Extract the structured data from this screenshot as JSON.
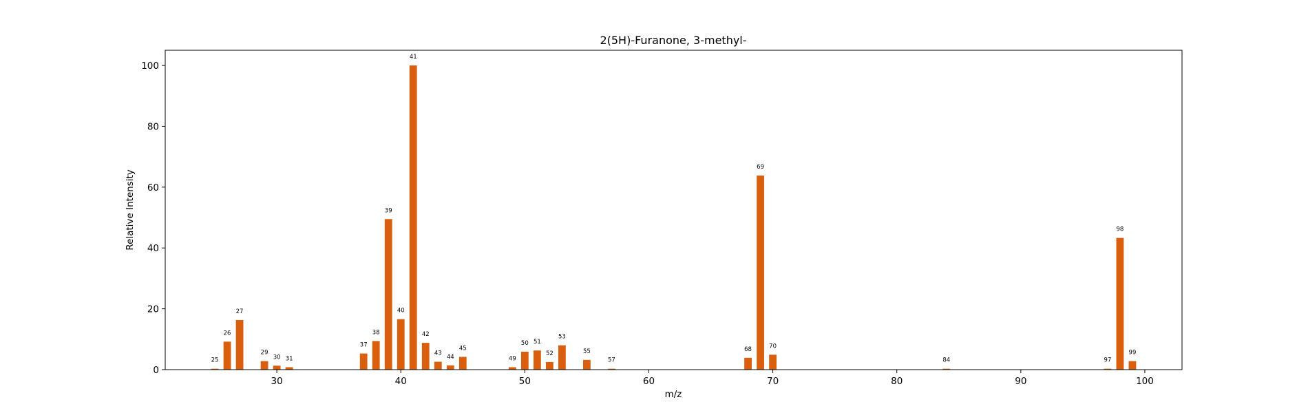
{
  "chart_data": {
    "type": "bar",
    "title": "2(5H)-Furanone, 3-methyl-",
    "xlabel": "m/z",
    "ylabel": "Relative Intensity",
    "xlim": [
      21,
      103
    ],
    "ylim": [
      0,
      105
    ],
    "xticks": [
      30,
      40,
      50,
      60,
      70,
      80,
      90,
      100
    ],
    "yticks": [
      0,
      20,
      40,
      60,
      80,
      100
    ],
    "bar_color": "#d95f0e",
    "grid": false,
    "legend": false,
    "peaks": [
      {
        "mz": 25,
        "intensity": 0.3
      },
      {
        "mz": 26,
        "intensity": 9.2
      },
      {
        "mz": 27,
        "intensity": 16.3
      },
      {
        "mz": 29,
        "intensity": 2.8
      },
      {
        "mz": 30,
        "intensity": 1.3
      },
      {
        "mz": 31,
        "intensity": 0.8
      },
      {
        "mz": 37,
        "intensity": 5.3
      },
      {
        "mz": 38,
        "intensity": 9.4
      },
      {
        "mz": 39,
        "intensity": 49.5
      },
      {
        "mz": 40,
        "intensity": 16.6
      },
      {
        "mz": 41,
        "intensity": 100
      },
      {
        "mz": 42,
        "intensity": 8.8
      },
      {
        "mz": 43,
        "intensity": 2.6
      },
      {
        "mz": 44,
        "intensity": 1.4
      },
      {
        "mz": 45,
        "intensity": 4.2
      },
      {
        "mz": 49,
        "intensity": 0.8
      },
      {
        "mz": 50,
        "intensity": 5.9
      },
      {
        "mz": 51,
        "intensity": 6.3
      },
      {
        "mz": 52,
        "intensity": 2.5
      },
      {
        "mz": 53,
        "intensity": 8.0
      },
      {
        "mz": 55,
        "intensity": 3.2
      },
      {
        "mz": 57,
        "intensity": 0.3
      },
      {
        "mz": 68,
        "intensity": 3.9
      },
      {
        "mz": 69,
        "intensity": 63.8
      },
      {
        "mz": 70,
        "intensity": 4.9
      },
      {
        "mz": 84,
        "intensity": 0.3
      },
      {
        "mz": 97,
        "intensity": 0.3
      },
      {
        "mz": 98,
        "intensity": 43.3
      },
      {
        "mz": 99,
        "intensity": 2.8
      }
    ]
  }
}
